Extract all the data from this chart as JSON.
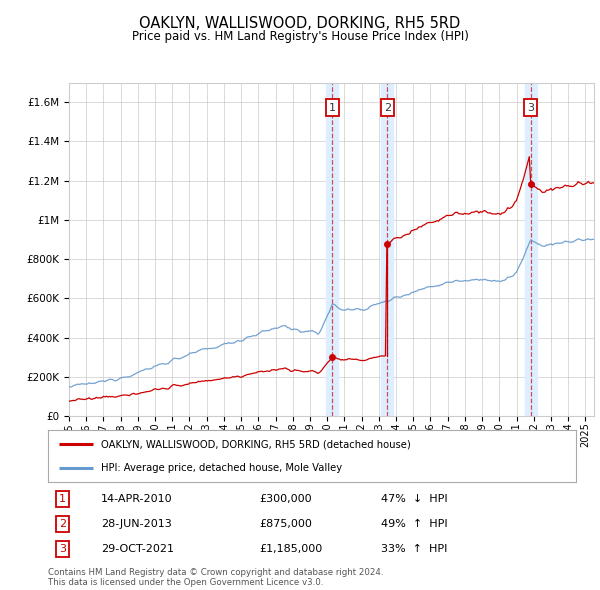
{
  "title": "OAKLYN, WALLISWOOD, DORKING, RH5 5RD",
  "subtitle": "Price paid vs. HM Land Registry's House Price Index (HPI)",
  "property_label": "OAKLYN, WALLISWOOD, DORKING, RH5 5RD (detached house)",
  "hpi_label": "HPI: Average price, detached house, Mole Valley",
  "footnote1": "Contains HM Land Registry data © Crown copyright and database right 2024.",
  "footnote2": "This data is licensed under the Open Government Licence v3.0.",
  "sales": [
    {
      "num": 1,
      "date": "14-APR-2010",
      "price": 300000,
      "pct": "47%",
      "dir": "↓",
      "x": 2010.29
    },
    {
      "num": 2,
      "date": "28-JUN-2013",
      "price": 875000,
      "pct": "49%",
      "dir": "↑",
      "x": 2013.49
    },
    {
      "num": 3,
      "date": "29-OCT-2021",
      "price": 1185000,
      "pct": "33%",
      "dir": "↑",
      "x": 2021.83
    }
  ],
  "ylim": [
    0,
    1700000
  ],
  "xlim": [
    1995.0,
    2025.5
  ],
  "yticks": [
    0,
    200000,
    400000,
    600000,
    800000,
    1000000,
    1200000,
    1400000,
    1600000
  ],
  "ytick_labels": [
    "£0",
    "£200K",
    "£400K",
    "£600K",
    "£800K",
    "£1M",
    "£1.2M",
    "£1.4M",
    "£1.6M"
  ],
  "xticks": [
    1995,
    1996,
    1997,
    1998,
    1999,
    2000,
    2001,
    2002,
    2003,
    2004,
    2005,
    2006,
    2007,
    2008,
    2009,
    2010,
    2011,
    2012,
    2013,
    2014,
    2015,
    2016,
    2017,
    2018,
    2019,
    2020,
    2021,
    2022,
    2023,
    2024,
    2025
  ],
  "red_color": "#cc0000",
  "blue_color": "#6699cc",
  "shading_color": "#ddeeff",
  "vline_color": "#cc3333",
  "grid_color": "#cccccc",
  "background_color": "#ffffff",
  "sale_box_color": "#cc0000",
  "legend_box_color": "#aaaaaa"
}
